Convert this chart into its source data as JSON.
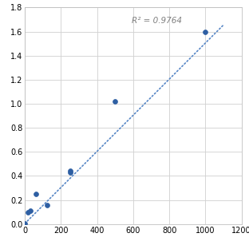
{
  "x": [
    0,
    15,
    31,
    62,
    125,
    250,
    250,
    500,
    1000
  ],
  "y": [
    0.005,
    0.1,
    0.11,
    0.25,
    0.16,
    0.43,
    0.44,
    1.02,
    1.595
  ],
  "trendline_x": [
    0,
    1100
  ],
  "trendline_y": [
    0.005,
    1.655
  ],
  "r_squared": "R² = 0.9764",
  "r_sq_x": 590,
  "r_sq_y": 1.72,
  "xlim": [
    0,
    1200
  ],
  "ylim": [
    0,
    1.8
  ],
  "xticks": [
    0,
    200,
    400,
    600,
    800,
    1000,
    1200
  ],
  "yticks": [
    0.0,
    0.2,
    0.4,
    0.6,
    0.8,
    1.0,
    1.2,
    1.4,
    1.6,
    1.8
  ],
  "marker_color": "#2E5FA3",
  "line_color": "#5585C5",
  "background_color": "#FFFFFF",
  "grid_color": "#D0D0D0",
  "marker_size": 18,
  "line_width": 1.2,
  "tick_fontsize": 7,
  "annotation_fontsize": 7.5
}
